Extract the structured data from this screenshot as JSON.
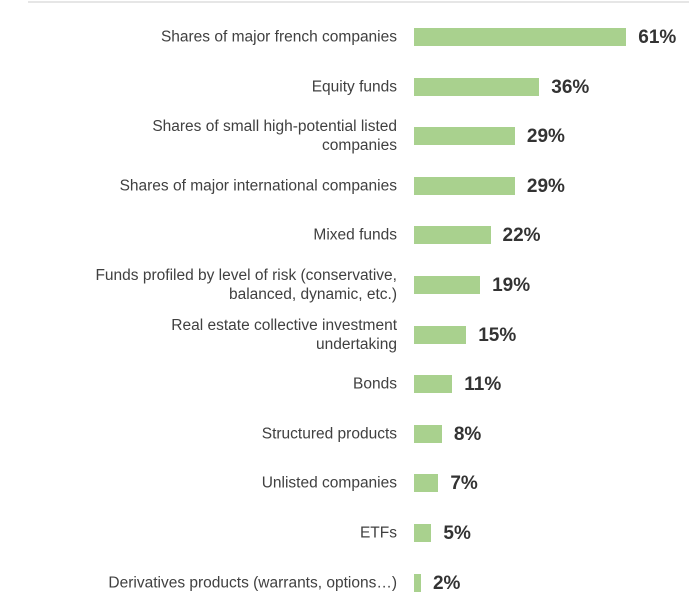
{
  "chart_data": {
    "type": "bar",
    "orientation": "horizontal",
    "categories": [
      "Shares of major french companies",
      "Equity funds",
      "Shares of small high-potential listed\ncompanies",
      "Shares of major international companies",
      "Mixed funds",
      "Funds profiled by level of risk (conservative,\nbalanced, dynamic, etc.)",
      "Real estate collective investment\nundertaking",
      "Bonds",
      "Structured products",
      "Unlisted companies",
      "ETFs",
      "Derivatives products (warrants, options…)"
    ],
    "values": [
      61,
      36,
      29,
      29,
      22,
      19,
      15,
      11,
      8,
      7,
      5,
      2
    ],
    "value_labels": [
      "61%",
      "36%",
      "29%",
      "29%",
      "22%",
      "19%",
      "15%",
      "11%",
      "8%",
      "7%",
      "5%",
      "2%"
    ],
    "color": "#a9d18e"
  }
}
